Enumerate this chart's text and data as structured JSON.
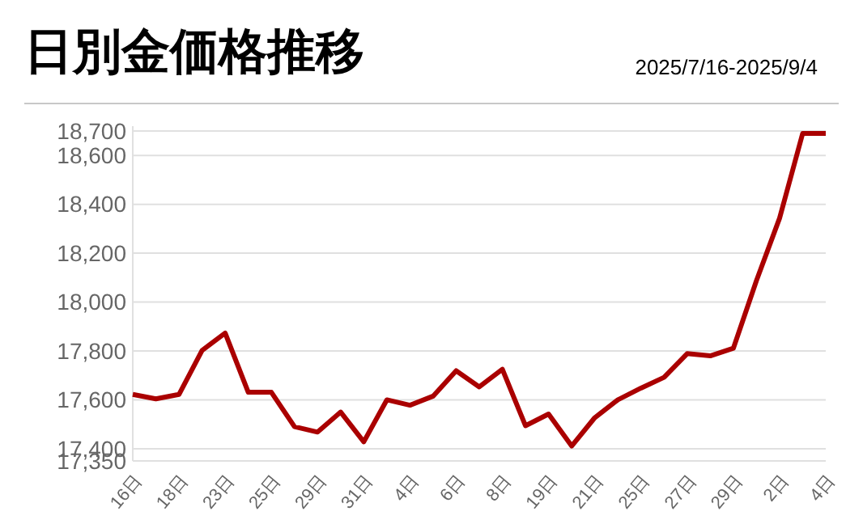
{
  "chart_data": {
    "type": "line",
    "title": "日別金価格推移",
    "subtitle": "2025/7/16-2025/9/4",
    "categories": [
      "16日",
      null,
      "18日",
      null,
      "23日",
      null,
      "25日",
      null,
      "29日",
      null,
      "31日",
      null,
      "4日",
      null,
      "6日",
      null,
      "8日",
      null,
      "19日",
      null,
      "21日",
      null,
      "25日",
      null,
      "27日",
      null,
      "29日",
      null,
      "2日",
      null,
      "4日"
    ],
    "series": [
      {
        "color": "#aa0000",
        "values": [
          17622,
          17604,
          17622,
          17802,
          17873,
          17631,
          17631,
          17490,
          17468,
          17550,
          17428,
          17600,
          17578,
          17615,
          17719,
          17653,
          17725,
          17494,
          17542,
          17411,
          17527,
          17600,
          17648,
          17692,
          17789,
          17780,
          17811,
          18088,
          18343,
          18690,
          18690
        ]
      }
    ],
    "ylim": [
      17350,
      18700
    ],
    "yticks": [
      {
        "value": 17350,
        "label": "17,350"
      },
      {
        "value": 17400,
        "label": "17,400"
      },
      {
        "value": 17600,
        "label": "17,600"
      },
      {
        "value": 17800,
        "label": "17,800"
      },
      {
        "value": 18000,
        "label": "18,000"
      },
      {
        "value": 18200,
        "label": "18,200"
      },
      {
        "value": 18400,
        "label": "18,400"
      },
      {
        "value": 18600,
        "label": "18,600"
      },
      {
        "value": 18700,
        "label": "18,700"
      }
    ],
    "grid": "y",
    "marker": "none",
    "line_style": "solid"
  }
}
